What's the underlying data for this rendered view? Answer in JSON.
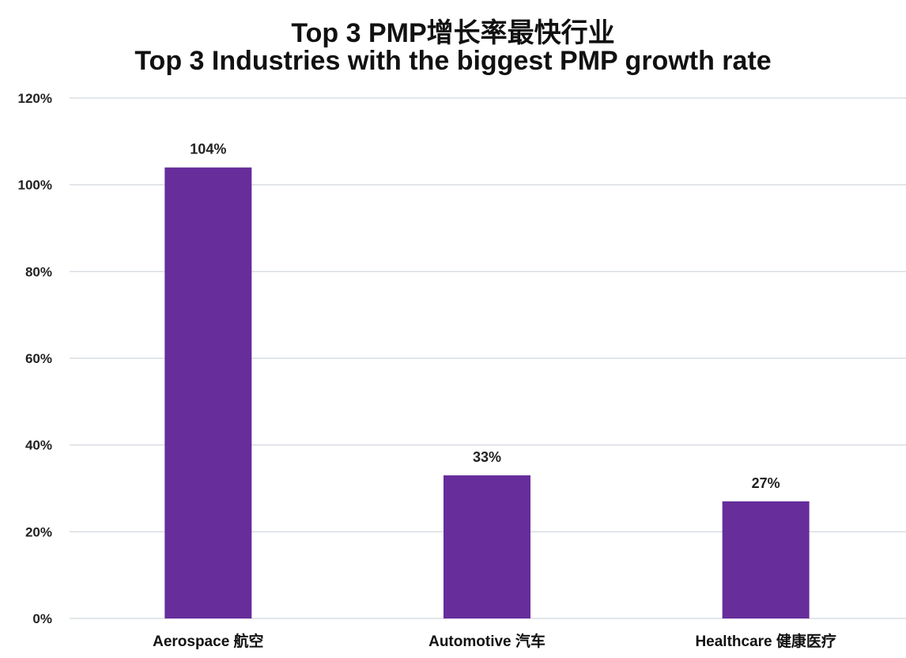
{
  "chart_data": {
    "type": "bar",
    "title": "Top 3 PMP增长率最快行业",
    "subtitle": "Top 3 Industries with the biggest PMP growth rate",
    "categories": [
      "Aerospace 航空",
      "Automotive 汽车",
      "Healthcare 健康医疗"
    ],
    "values": [
      104,
      33,
      27
    ],
    "data_labels": [
      "104%",
      "33%",
      "27%"
    ],
    "ylim": [
      0,
      120
    ],
    "yticks": [
      0,
      20,
      40,
      60,
      80,
      100,
      120
    ],
    "ytick_labels": [
      "0%",
      "20%",
      "40%",
      "60%",
      "80%",
      "100%",
      "120%"
    ],
    "grid": true,
    "legend": "none",
    "bar_color": "#662d9b",
    "grid_color": "#d9dde3"
  }
}
